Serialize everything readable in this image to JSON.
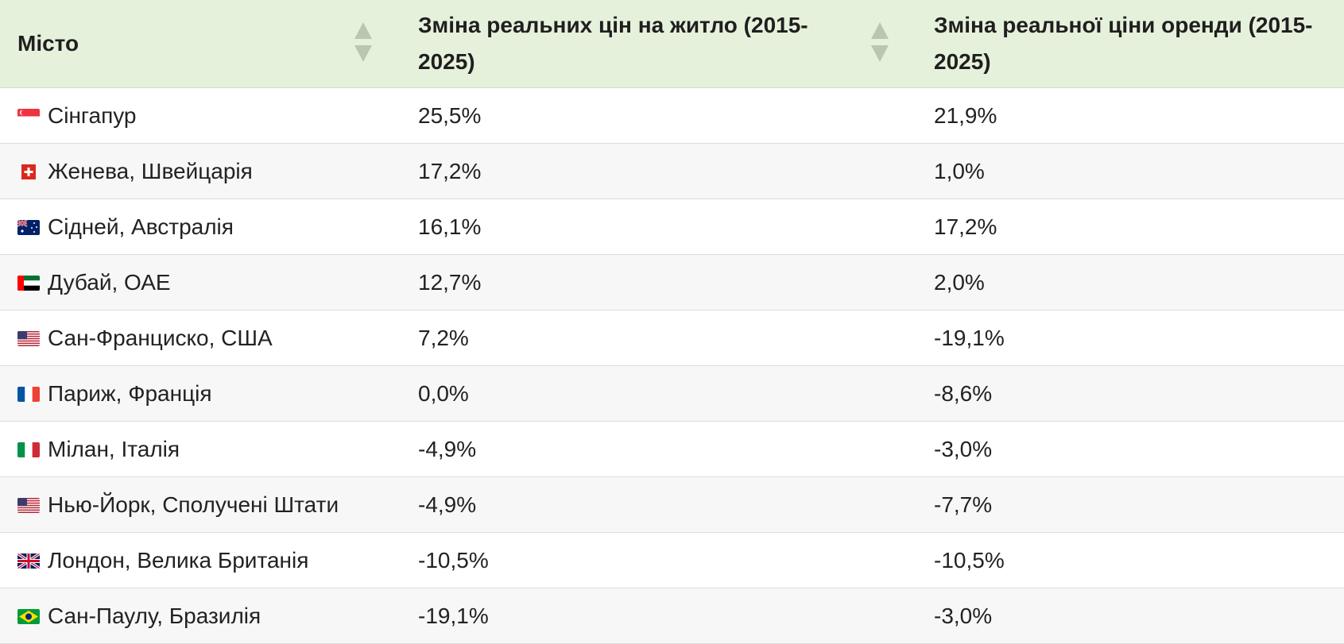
{
  "table": {
    "headers": {
      "city": "Місто",
      "price_change": "Зміна реальних цін на житло (2015-2025)",
      "rent_change": "Зміна реальної ціни оренди (2015-2025)"
    },
    "rows": [
      {
        "flag": "singapore-flag-icon",
        "city": "Сінгапур",
        "price": "25,5%",
        "rent": "21,9%"
      },
      {
        "flag": "switzerland-flag-icon",
        "city": "Женева, Швейцарія",
        "price": "17,2%",
        "rent": "1,0%"
      },
      {
        "flag": "australia-flag-icon",
        "city": "Сідней, Австралія",
        "price": "16,1%",
        "rent": "17,2%"
      },
      {
        "flag": "uae-flag-icon",
        "city": "Дубай, ОАЕ",
        "price": "12,7%",
        "rent": "2,0%"
      },
      {
        "flag": "usa-flag-icon",
        "city": "Сан-Франциско, США",
        "price": "7,2%",
        "rent": "-19,1%"
      },
      {
        "flag": "france-flag-icon",
        "city": "Париж, Франція",
        "price": "0,0%",
        "rent": "-8,6%"
      },
      {
        "flag": "italy-flag-icon",
        "city": "Мілан, Італія",
        "price": "-4,9%",
        "rent": "-3,0%"
      },
      {
        "flag": "usa-flag-icon",
        "city": "Нью-Йорк, Сполучені Штати",
        "price": "-4,9%",
        "rent": "-7,7%"
      },
      {
        "flag": "uk-flag-icon",
        "city": "Лондон, Велика Британія",
        "price": "-10,5%",
        "rent": "-10,5%"
      },
      {
        "flag": "brazil-flag-icon",
        "city": "Сан-Паулу, Бразилія",
        "price": "-19,1%",
        "rent": "-3,0%"
      }
    ]
  },
  "colors": {
    "header_bg": "#e6f1dc",
    "row_alt_bg": "#f7f7f7",
    "sort_arrow": "#b9c7b0"
  }
}
